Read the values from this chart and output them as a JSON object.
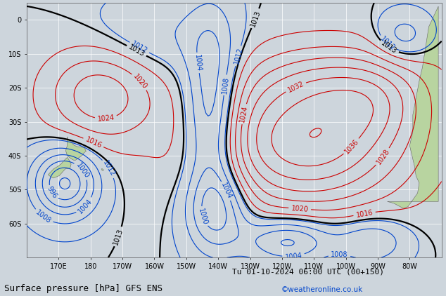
{
  "title": "Surface pressure [hPa] GFS ENS",
  "datetime": "Tu 01-10-2024 06:00 UTC (00+150)",
  "watermark": "©weatheronline.co.uk",
  "bg_color": "#cdd5dc",
  "land_color": "#b8d4a0",
  "grid_color": "#ffffff",
  "contour_black": "#000000",
  "contour_red": "#cc0000",
  "contour_blue": "#0044cc",
  "label_fontsize": 7,
  "title_fontsize": 9,
  "xlim": [
    160,
    290
  ],
  "ylim": [
    -70,
    5
  ],
  "xticks": [
    170,
    180,
    190,
    200,
    210,
    220,
    230,
    240,
    250,
    260,
    270,
    280
  ],
  "xlabel_map": {
    "170": "170E",
    "180": "180",
    "190": "170W",
    "200": "160W",
    "210": "150W",
    "220": "140W",
    "230": "130W",
    "240": "120W",
    "250": "110W",
    "260": "100W",
    "270": "90W",
    "280": "80W"
  },
  "yticks": [
    -60,
    -50,
    -40,
    -30,
    -20,
    -10,
    0
  ],
  "nx": 200,
  "ny": 150
}
